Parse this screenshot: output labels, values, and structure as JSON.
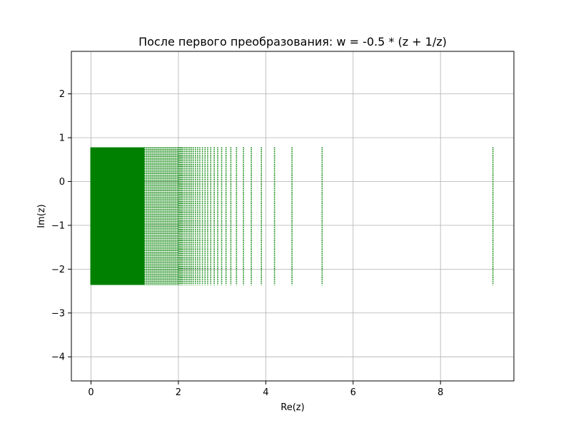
{
  "chart_data": {
    "type": "scatter",
    "title": "После первого преобразования: w = -0.5 * (z + 1/z)",
    "xlabel": "Re(z)",
    "ylabel": "Im(z)",
    "xlim": [
      -0.45,
      9.68
    ],
    "ylim": [
      -4.55,
      2.97
    ],
    "xticks": [
      0,
      2,
      4,
      6,
      8
    ],
    "yticks": [
      -4,
      -3,
      -2,
      -1,
      0,
      1,
      2
    ],
    "grid": true,
    "color": "#008000",
    "marker_size": 1,
    "points": {
      "x_description": "vertical lines of points at x = -0.5*(a + 1/a) over a grid",
      "x_values": [
        9.2,
        5.29,
        4.6,
        4.2,
        3.9,
        3.67,
        3.49,
        3.33,
        3.2,
        3.09,
        2.99,
        2.9,
        2.82,
        2.74,
        2.67,
        2.61,
        2.55,
        2.49,
        2.44,
        2.39,
        2.34,
        2.3,
        2.26,
        2.22,
        2.18,
        2.14,
        2.1,
        2.07,
        2.04,
        2.01
      ],
      "dense_from": 0.0,
      "dense_to": 2.0,
      "y_min": -2.36,
      "y_max": 0.78
    }
  },
  "tick_labels": {
    "x": [
      "0",
      "2",
      "4",
      "6",
      "8"
    ],
    "y": [
      "−4",
      "−3",
      "−2",
      "−1",
      "0",
      "1",
      "2"
    ]
  }
}
